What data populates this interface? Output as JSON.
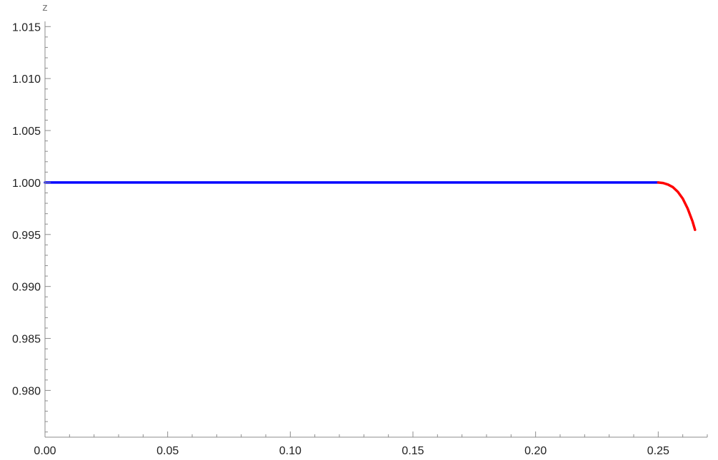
{
  "chart_data": {
    "type": "line",
    "title": "",
    "xlabel": "",
    "ylabel": "z",
    "xlim": [
      0,
      0.27
    ],
    "ylim": [
      0.9755,
      1.0155
    ],
    "x_ticks": [
      "0.00",
      "0.05",
      "0.10",
      "0.15",
      "0.20",
      "0.25"
    ],
    "y_ticks": [
      "0.980",
      "0.985",
      "0.990",
      "0.995",
      "1.000",
      "1.005",
      "1.010",
      "1.015"
    ],
    "grid": false,
    "legend": "none",
    "series": [
      {
        "color": "#0000ff",
        "x": [
          0,
          0.05,
          0.1,
          0.15,
          0.2,
          0.25
        ],
        "y": [
          1.0,
          1.0,
          1.0,
          1.0,
          1.0,
          1.0
        ]
      },
      {
        "color": "#ff0000",
        "x": [
          0.25,
          0.252,
          0.254,
          0.256,
          0.258,
          0.26,
          0.262,
          0.264,
          0.265
        ],
        "y": [
          1.0,
          0.99995,
          0.9998,
          0.99955,
          0.9991,
          0.99845,
          0.9975,
          0.99625,
          0.99545
        ]
      }
    ]
  }
}
